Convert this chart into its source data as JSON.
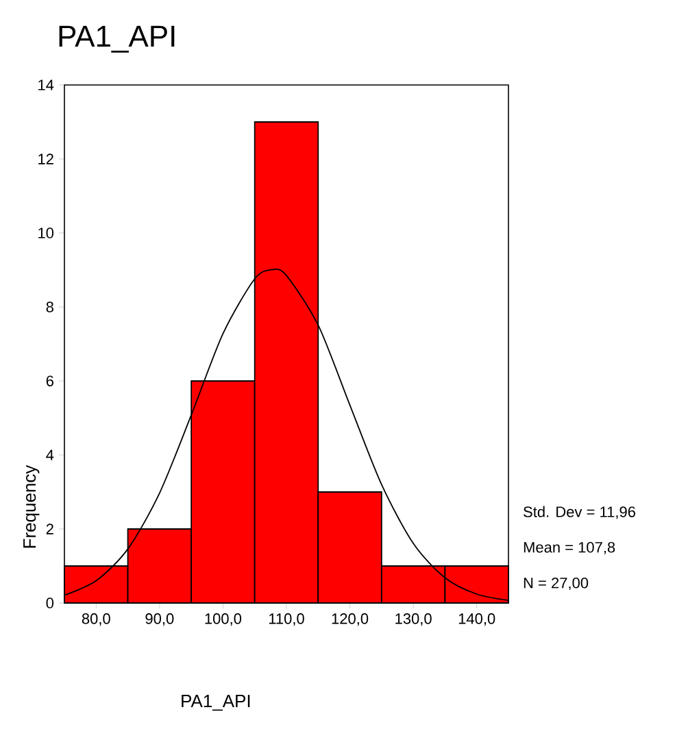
{
  "chart_data": {
    "type": "histogram",
    "title": "PA1_API",
    "xlabel": "PA1_API",
    "ylabel": "Frequency",
    "bins": [
      75,
      85,
      95,
      105,
      115,
      125,
      135,
      145
    ],
    "values": [
      1,
      2,
      6,
      13,
      3,
      1,
      1
    ],
    "color": "#ff0000",
    "series": [
      {
        "type": "line",
        "color": "#000000",
        "x": [
          75,
          80,
          85,
          90,
          95,
          100,
          105,
          107.8,
          110,
          115,
          120,
          125,
          130,
          135,
          140,
          145
        ],
        "values": [
          0.21,
          0.6,
          1.46,
          2.97,
          5.08,
          7.28,
          8.76,
          9.01,
          8.85,
          7.51,
          5.35,
          3.2,
          1.61,
          0.68,
          0.24,
          0.07
        ]
      }
    ],
    "xlim": [
      75,
      145
    ],
    "ylim": [
      0,
      14
    ],
    "xticks": [
      {
        "value": 80,
        "label": "80,0"
      },
      {
        "value": 90,
        "label": "90,0"
      },
      {
        "value": 100,
        "label": "100,0"
      },
      {
        "value": 110,
        "label": "110,0"
      },
      {
        "value": 120,
        "label": "120,0"
      },
      {
        "value": 130,
        "label": "130,0"
      },
      {
        "value": 140,
        "label": "140,0"
      }
    ],
    "yticks": [
      0,
      2,
      4,
      6,
      8,
      10,
      12,
      14
    ],
    "annotations": [
      "Std. Dev = 11,96",
      "Mean = 107,8",
      "N = 27,00"
    ]
  }
}
